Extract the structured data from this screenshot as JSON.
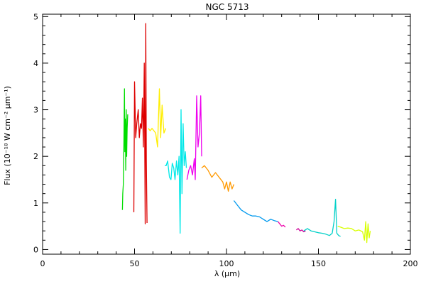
{
  "chart_data": {
    "type": "line",
    "title": "NGC 5713",
    "xlabel": "λ (μm)",
    "ylabel": "Flux (10⁻¹⁸ W cm⁻² μm⁻¹)",
    "xlim": [
      0,
      200
    ],
    "ylim": [
      -0.1,
      5.05
    ],
    "xticks": [
      0,
      50,
      100,
      150,
      200
    ],
    "yticks": [
      0,
      1,
      2,
      3,
      4,
      5
    ],
    "grid": false,
    "series": [
      {
        "color": "#00dd00",
        "x": [
          43.4,
          43.6,
          43.9,
          44.2,
          44.5,
          44.7,
          45.0,
          45.2,
          45.5,
          45.7,
          46.0,
          46.3
        ],
        "y": [
          0.85,
          1.2,
          1.4,
          2.3,
          3.45,
          2.1,
          2.8,
          1.7,
          3.0,
          2.0,
          2.6,
          2.9
        ]
      },
      {
        "color": "#dd0000",
        "x": [
          49.6,
          50.0,
          50.6,
          51.2,
          52.0,
          52.6,
          53.2,
          53.8,
          54.3,
          54.8,
          55.3,
          55.8,
          56.1,
          56.4,
          56.8
        ],
        "y": [
          0.8,
          3.6,
          2.4,
          2.7,
          3.0,
          2.4,
          2.7,
          2.6,
          3.25,
          2.2,
          4.0,
          0.55,
          4.85,
          1.9,
          0.57
        ]
      },
      {
        "color": "#ffee00",
        "x": [
          57.5,
          58.5,
          59.5,
          60.5,
          61.5,
          62.5,
          63.5,
          64.2,
          65.0,
          66.0,
          67.0
        ],
        "y": [
          2.6,
          2.55,
          2.6,
          2.55,
          2.5,
          2.2,
          3.45,
          2.4,
          3.1,
          2.5,
          2.6
        ]
      },
      {
        "color": "#00e8e8",
        "x": [
          66.5,
          67.2,
          68.0,
          69.0,
          69.8,
          70.5,
          71.3,
          72.0,
          72.8,
          73.5,
          74.2,
          74.8,
          75.3,
          75.8,
          76.4,
          77.0,
          77.6,
          78.2
        ],
        "y": [
          1.8,
          1.8,
          1.9,
          1.55,
          1.5,
          1.85,
          1.75,
          1.5,
          1.9,
          1.6,
          2.0,
          0.35,
          3.0,
          1.2,
          2.7,
          1.8,
          2.1,
          1.75
        ]
      },
      {
        "color": "#ee00ee",
        "x": [
          78.5,
          79.5,
          80.5,
          81.5,
          82.5,
          83.0,
          83.8,
          84.5,
          85.3,
          86.0,
          86.5
        ],
        "y": [
          1.5,
          1.7,
          1.8,
          1.6,
          1.95,
          1.5,
          3.3,
          2.2,
          2.5,
          3.3,
          2.0
        ]
      },
      {
        "color": "#ff9900",
        "x": [
          86.5,
          88.0,
          90.0,
          92.0,
          94.0,
          96.0,
          98.0,
          99.0,
          100.0,
          101.0,
          102.0,
          103.0,
          104.0
        ],
        "y": [
          1.75,
          1.8,
          1.7,
          1.55,
          1.65,
          1.55,
          1.45,
          1.3,
          1.45,
          1.25,
          1.45,
          1.3,
          1.4
        ]
      },
      {
        "color": "#0099ee",
        "x": [
          104.0,
          106.0,
          108.0,
          110.0,
          112.0,
          114.0,
          116.0,
          118.0,
          120.0,
          122.0,
          124.0,
          126.0,
          128.0
        ],
        "y": [
          1.05,
          0.95,
          0.85,
          0.8,
          0.75,
          0.72,
          0.72,
          0.7,
          0.65,
          0.6,
          0.65,
          0.62,
          0.6
        ]
      },
      {
        "color": "#ee00aa",
        "x": [
          128.0,
          129.0,
          130.0,
          131.0,
          132.0
        ],
        "y": [
          0.6,
          0.55,
          0.5,
          0.52,
          0.48
        ]
      },
      {
        "color": "#cc0099",
        "x": [
          138.0,
          139.0,
          140.0,
          141.0,
          142.0,
          143.0
        ],
        "y": [
          0.42,
          0.45,
          0.4,
          0.42,
          0.38,
          0.4
        ]
      },
      {
        "color": "#00d0c8",
        "x": [
          142.0,
          144.0,
          146.0,
          148.0,
          150.0,
          152.0,
          154.0,
          156.0,
          157.5,
          158.5,
          159.3,
          160.0,
          161.0,
          162.0
        ],
        "y": [
          0.4,
          0.45,
          0.4,
          0.38,
          0.36,
          0.35,
          0.33,
          0.3,
          0.35,
          0.6,
          1.08,
          0.35,
          0.3,
          0.28
        ]
      },
      {
        "color": "#d8ff00",
        "x": [
          160.5,
          162.0,
          164.0,
          166.0,
          168.0,
          170.0,
          172.0,
          174.0,
          175.0,
          175.7,
          176.3,
          177.0,
          177.6,
          178.2
        ],
        "y": [
          0.5,
          0.48,
          0.45,
          0.46,
          0.45,
          0.4,
          0.42,
          0.38,
          0.2,
          0.6,
          0.15,
          0.55,
          0.25,
          0.4
        ]
      }
    ]
  }
}
